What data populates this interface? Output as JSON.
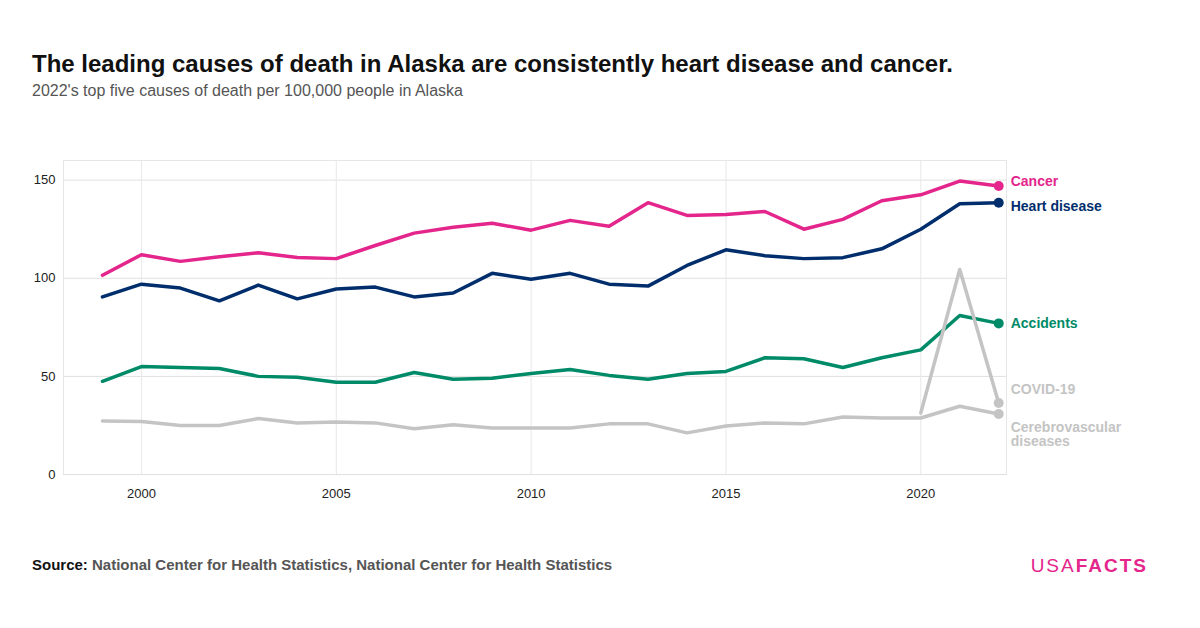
{
  "chart_data": {
    "type": "line",
    "title": "The leading causes of death in Alaska are consistently heart disease and cancer.",
    "subtitle": "2022's top five causes of death per 100,000 people in Alaska",
    "source_label": "Source:",
    "source": "National Center for Health Statistics, National Center for Health Statistics",
    "brand": [
      "USA",
      "FACTS"
    ],
    "x": [
      1999,
      2000,
      2001,
      2002,
      2003,
      2004,
      2005,
      2006,
      2007,
      2008,
      2009,
      2010,
      2011,
      2012,
      2013,
      2014,
      2015,
      2016,
      2017,
      2018,
      2019,
      2020,
      2021,
      2022
    ],
    "series": [
      {
        "name": "Cancer",
        "color": "#e3258c",
        "values": [
          101.5,
          112,
          108.6,
          111,
          113,
          110.6,
          110,
          116.7,
          123,
          126,
          128,
          124.5,
          129.5,
          126.5,
          138.5,
          132,
          132.5,
          134,
          125,
          130,
          139.5,
          142.5,
          149.5,
          147
        ]
      },
      {
        "name": "Heart disease",
        "color": "#002e6d",
        "values": [
          90.5,
          97,
          95,
          88.5,
          96.5,
          89.5,
          94.5,
          95.5,
          90.5,
          92.5,
          102.5,
          99.5,
          102.5,
          97,
          96,
          106.5,
          114.5,
          111.5,
          110,
          110.5,
          115,
          125,
          138,
          138.5
        ]
      },
      {
        "name": "Accidents",
        "color": "#008b68",
        "values": [
          47.5,
          55,
          54.5,
          54,
          50,
          49.5,
          47,
          47,
          52,
          48.5,
          49,
          51.5,
          53.5,
          50.5,
          48.5,
          51.5,
          52.5,
          59.5,
          59,
          54.5,
          59.5,
          63.5,
          81,
          77
        ]
      },
      {
        "name": "COVID-19",
        "color": "#c4c4c4",
        "values": [
          null,
          null,
          null,
          null,
          null,
          null,
          null,
          null,
          null,
          null,
          null,
          null,
          null,
          null,
          null,
          null,
          null,
          null,
          null,
          null,
          null,
          31.3,
          104.5,
          36.4
        ]
      },
      {
        "name": "Cerebrovascular diseases",
        "color": "#c4c4c4",
        "values": [
          27.3,
          27,
          25,
          25,
          28.5,
          26.3,
          26.8,
          26.3,
          23.3,
          25.3,
          23.7,
          23.7,
          23.7,
          25.8,
          25.8,
          21.2,
          24.7,
          26.3,
          25.8,
          29.3,
          28.8,
          28.8,
          34.8,
          30.8
        ]
      }
    ],
    "xlim": [
      1998,
      2022.2
    ],
    "xticks": [
      2000,
      2005,
      2010,
      2015,
      2020
    ],
    "ylim": [
      0,
      160
    ],
    "yticks": [
      0,
      50,
      100,
      150
    ],
    "grid": true,
    "marker": "circle"
  }
}
